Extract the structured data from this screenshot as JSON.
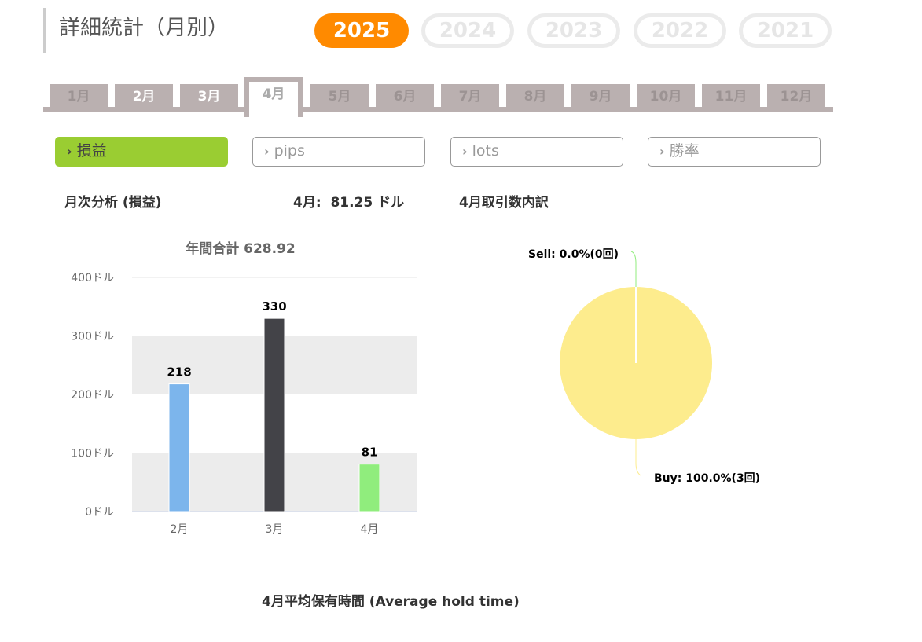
{
  "header": {
    "title": "詳細統計（月別）"
  },
  "years": [
    {
      "label": "2025",
      "active": true
    },
    {
      "label": "2024"
    },
    {
      "label": "2023"
    },
    {
      "label": "2022"
    },
    {
      "label": "2021"
    }
  ],
  "months": [
    "1月",
    "2月",
    "3月",
    "4月",
    "5月",
    "6月",
    "7月",
    "8月",
    "9月",
    "10月",
    "11月",
    "12月"
  ],
  "active_month": "4月",
  "metrics": [
    {
      "label": "損益",
      "active": true
    },
    {
      "label": "pips"
    },
    {
      "label": "lots"
    },
    {
      "label": "勝率"
    }
  ],
  "colors": {
    "accent": "#ff8a00",
    "metric_active": "#9acd32",
    "tab": "#bab0b0"
  },
  "sections": {
    "monthly_analysis": "月次分析 (損益)",
    "month_value": "4月:  81.25 ドル",
    "trade_breakdown": "4月取引数内訳",
    "hold_time": "4月平均保有時間 (Average hold time)"
  },
  "chart_data": [
    {
      "type": "bar",
      "title": "年間合計 628.92",
      "categories": [
        "2月",
        "3月",
        "4月"
      ],
      "values": [
        218,
        330,
        81
      ],
      "data_labels": [
        "218",
        "330",
        "81"
      ],
      "colors": [
        "#7cb5ec",
        "#434348",
        "#90ed7d"
      ],
      "yticks": [
        "0ドル",
        "100ドル",
        "200ドル",
        "300ドル",
        "400ドル"
      ],
      "ylim": [
        0,
        400
      ],
      "grid": true
    },
    {
      "type": "pie",
      "slices": [
        {
          "label": "Sell: 0.0%(0回)",
          "value": 0,
          "color": "#90ed7d"
        },
        {
          "label": "Buy: 100.0%(3回)",
          "value": 100,
          "color": "#fdec8d"
        }
      ]
    }
  ]
}
